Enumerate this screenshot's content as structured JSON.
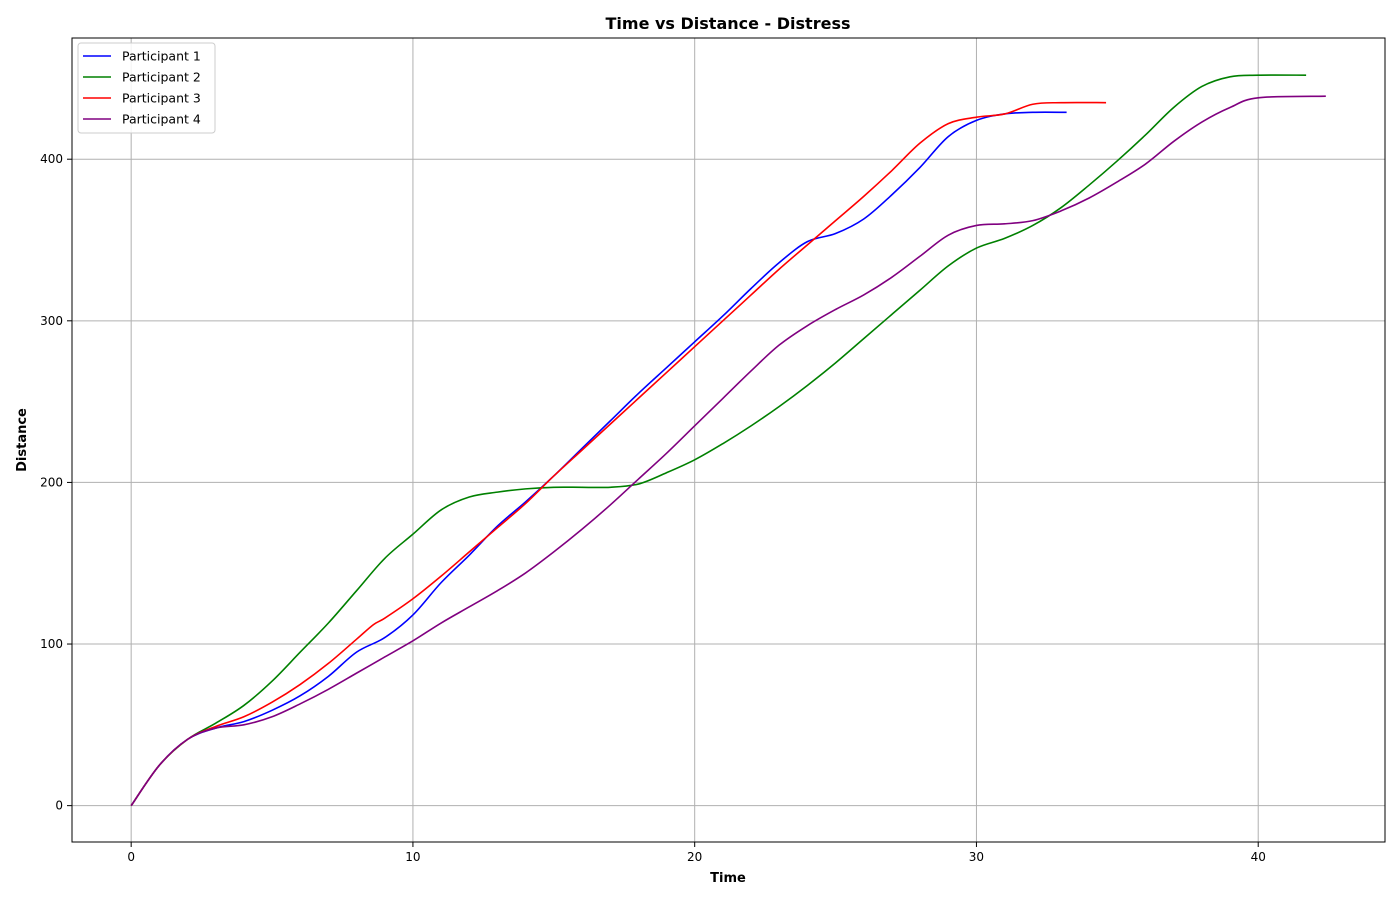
{
  "chart_data": {
    "type": "line",
    "title": "Time vs Distance - Distress",
    "xlabel": "Time",
    "ylabel": "Distance",
    "xlim": [
      -2.1,
      44.5
    ],
    "ylim": [
      -22.5,
      475
    ],
    "xticks": [
      0,
      10,
      20,
      30,
      40
    ],
    "yticks": [
      0,
      100,
      200,
      300,
      400
    ],
    "grid": true,
    "legend_position": "top-left",
    "series": [
      {
        "name": "Participant 1",
        "color": "#0000ff",
        "points": [
          [
            0,
            0
          ],
          [
            1,
            25
          ],
          [
            2,
            41
          ],
          [
            3,
            48
          ],
          [
            4,
            52
          ],
          [
            5,
            59
          ],
          [
            6,
            68
          ],
          [
            7,
            80
          ],
          [
            8,
            95
          ],
          [
            9,
            104
          ],
          [
            10,
            118
          ],
          [
            11,
            138
          ],
          [
            12,
            155
          ],
          [
            13,
            173
          ],
          [
            14,
            188
          ],
          [
            15,
            204
          ],
          [
            16,
            221
          ],
          [
            17,
            238
          ],
          [
            18,
            255
          ],
          [
            19,
            271
          ],
          [
            20,
            287
          ],
          [
            21,
            303
          ],
          [
            22,
            320
          ],
          [
            23,
            336
          ],
          [
            24,
            349
          ],
          [
            25,
            354
          ],
          [
            26,
            363
          ],
          [
            27,
            378
          ],
          [
            28,
            395
          ],
          [
            29,
            414
          ],
          [
            30,
            424
          ],
          [
            31,
            428
          ],
          [
            32,
            429
          ],
          [
            33.2,
            429
          ]
        ]
      },
      {
        "name": "Participant 2",
        "color": "#008000",
        "points": [
          [
            0,
            0
          ],
          [
            1,
            25
          ],
          [
            2,
            41
          ],
          [
            3,
            51
          ],
          [
            4,
            62
          ],
          [
            5,
            77
          ],
          [
            6,
            95
          ],
          [
            7,
            113
          ],
          [
            8,
            133
          ],
          [
            9,
            153
          ],
          [
            10,
            168
          ],
          [
            11,
            183
          ],
          [
            12,
            191
          ],
          [
            13,
            194
          ],
          [
            14,
            196
          ],
          [
            15,
            197
          ],
          [
            16,
            197
          ],
          [
            17,
            197
          ],
          [
            18,
            199
          ],
          [
            19,
            206
          ],
          [
            20,
            214
          ],
          [
            21,
            224
          ],
          [
            22,
            235
          ],
          [
            23,
            247
          ],
          [
            24,
            260
          ],
          [
            25,
            274
          ],
          [
            26,
            289
          ],
          [
            27,
            304
          ],
          [
            28,
            319
          ],
          [
            29,
            334
          ],
          [
            30,
            345
          ],
          [
            31,
            351
          ],
          [
            32,
            359
          ],
          [
            33,
            370
          ],
          [
            34,
            384
          ],
          [
            35,
            399
          ],
          [
            36,
            415
          ],
          [
            37,
            432
          ],
          [
            38,
            445
          ],
          [
            39,
            451
          ],
          [
            40,
            452
          ],
          [
            41.7,
            452
          ]
        ]
      },
      {
        "name": "Participant 3",
        "color": "#ff0000",
        "points": [
          [
            0,
            0
          ],
          [
            1,
            25
          ],
          [
            2,
            41
          ],
          [
            3,
            49
          ],
          [
            4,
            55
          ],
          [
            5,
            64
          ],
          [
            6,
            75
          ],
          [
            7,
            88
          ],
          [
            8,
            103
          ],
          [
            8.6,
            112
          ],
          [
            9,
            116
          ],
          [
            10,
            128
          ],
          [
            11,
            142
          ],
          [
            12,
            157
          ],
          [
            13,
            172
          ],
          [
            14,
            187
          ],
          [
            15,
            204
          ],
          [
            16,
            220
          ],
          [
            17,
            236
          ],
          [
            18,
            252
          ],
          [
            19,
            268
          ],
          [
            20,
            284
          ],
          [
            21,
            300
          ],
          [
            22,
            316
          ],
          [
            23,
            332
          ],
          [
            24,
            347
          ],
          [
            25,
            362
          ],
          [
            26,
            377
          ],
          [
            27,
            393
          ],
          [
            28,
            410
          ],
          [
            29,
            422
          ],
          [
            30,
            426
          ],
          [
            31,
            428
          ],
          [
            32,
            434
          ],
          [
            33,
            435
          ],
          [
            34.6,
            435
          ]
        ]
      },
      {
        "name": "Participant 4",
        "color": "#800080",
        "points": [
          [
            0,
            0
          ],
          [
            1,
            25
          ],
          [
            2,
            41
          ],
          [
            3,
            48
          ],
          [
            4,
            50
          ],
          [
            5,
            55
          ],
          [
            6,
            63
          ],
          [
            7,
            72
          ],
          [
            8,
            82
          ],
          [
            9,
            92
          ],
          [
            10,
            102
          ],
          [
            11,
            113
          ],
          [
            12,
            123
          ],
          [
            13,
            133
          ],
          [
            14,
            144
          ],
          [
            15,
            157
          ],
          [
            16,
            171
          ],
          [
            17,
            186
          ],
          [
            18,
            202
          ],
          [
            19,
            218
          ],
          [
            20,
            235
          ],
          [
            21,
            252
          ],
          [
            22,
            269
          ],
          [
            23,
            285
          ],
          [
            24,
            297
          ],
          [
            25,
            307
          ],
          [
            26,
            316
          ],
          [
            27,
            327
          ],
          [
            28,
            340
          ],
          [
            29,
            353
          ],
          [
            30,
            359
          ],
          [
            31,
            360
          ],
          [
            32,
            362
          ],
          [
            33,
            368
          ],
          [
            34,
            376
          ],
          [
            35,
            386
          ],
          [
            36,
            397
          ],
          [
            37,
            411
          ],
          [
            38,
            423
          ],
          [
            39,
            432
          ],
          [
            40,
            438
          ],
          [
            42.4,
            439
          ]
        ]
      }
    ]
  }
}
